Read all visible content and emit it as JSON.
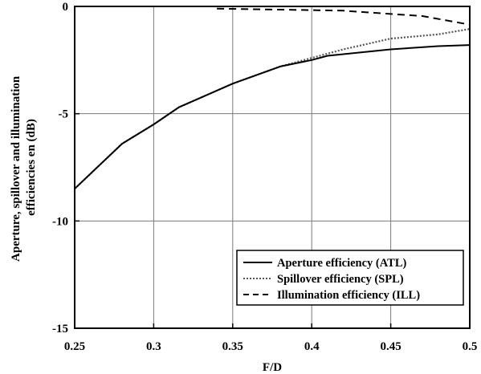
{
  "chart_data": {
    "type": "line",
    "title": "",
    "xlabel": "F/D",
    "ylabel": "Aperture, spillover and illumination efficiencies en (dB)",
    "ylabel_lines": [
      "Aperture, spillover and illumination",
      "efficiencies en (dB)"
    ],
    "xlim": [
      0.25,
      0.5
    ],
    "ylim": [
      -15,
      0
    ],
    "x_ticks": [
      0.25,
      0.3,
      0.35,
      0.4,
      0.45,
      0.5
    ],
    "x_tick_labels": [
      "0.25",
      "0.3",
      "0.35",
      "0.4",
      "0.45",
      "0.5"
    ],
    "y_ticks": [
      0,
      -5,
      -10,
      -15
    ],
    "y_tick_labels": [
      "0",
      "-5",
      "-10",
      "-15"
    ],
    "grid": true,
    "legend_position": "bottom-right",
    "series": [
      {
        "name": "Aperture efficiency (ATL)",
        "style": "solid",
        "color": "#000000",
        "x": [
          0.25,
          0.28,
          0.3,
          0.316,
          0.35,
          0.38,
          0.4,
          0.41,
          0.45,
          0.48,
          0.5
        ],
        "y": [
          -8.5,
          -6.4,
          -5.5,
          -4.7,
          -3.6,
          -2.8,
          -2.5,
          -2.3,
          -2.0,
          -1.85,
          -1.8
        ]
      },
      {
        "name": "Spillover efficiency (SPL)",
        "style": "dotted",
        "color": "#555555",
        "x": [
          0.25,
          0.28,
          0.3,
          0.316,
          0.35,
          0.38,
          0.4,
          0.42,
          0.45,
          0.48,
          0.5
        ],
        "y": [
          -8.5,
          -6.4,
          -5.5,
          -4.7,
          -3.6,
          -2.8,
          -2.4,
          -2.0,
          -1.5,
          -1.3,
          -1.05
        ]
      },
      {
        "name": "Illumination efficiency (ILL)",
        "style": "dashed",
        "color": "#000000",
        "x": [
          0.34,
          0.38,
          0.42,
          0.45,
          0.47,
          0.5
        ],
        "y": [
          -0.1,
          -0.15,
          -0.2,
          -0.35,
          -0.45,
          -0.85
        ]
      }
    ]
  }
}
